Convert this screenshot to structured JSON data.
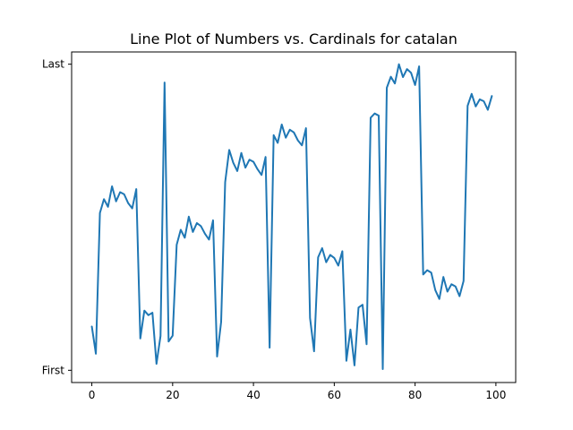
{
  "chart_data": {
    "type": "line",
    "title": "Line Plot of Numbers vs. Cardinals for catalan",
    "xlabel": "",
    "ylabel": "",
    "xlim": [
      -5,
      104.9
    ],
    "ylim": [
      -0.04,
      1.04
    ],
    "grid": false,
    "color": "#1f77b4",
    "x_ticks": [
      0,
      20,
      40,
      60,
      80,
      100
    ],
    "x_tick_labels": [
      "0",
      "20",
      "40",
      "60",
      "80",
      "100"
    ],
    "y_ticks": [
      0,
      1
    ],
    "y_tick_labels": [
      "First",
      "Last"
    ],
    "x": [
      0,
      1,
      2,
      3,
      4,
      5,
      6,
      7,
      8,
      9,
      10,
      11,
      12,
      13,
      14,
      15,
      16,
      17,
      18,
      19,
      20,
      21,
      22,
      23,
      24,
      25,
      26,
      27,
      28,
      29,
      30,
      31,
      32,
      33,
      34,
      35,
      36,
      37,
      38,
      39,
      40,
      41,
      42,
      43,
      44,
      45,
      46,
      47,
      48,
      49,
      50,
      51,
      52,
      53,
      54,
      55,
      56,
      57,
      58,
      59,
      60,
      61,
      62,
      63,
      64,
      65,
      66,
      67,
      68,
      69,
      70,
      71,
      72,
      73,
      74,
      75,
      76,
      77,
      78,
      79,
      80,
      81,
      82,
      83,
      84,
      85,
      86,
      87,
      88,
      89,
      90,
      91,
      92,
      93,
      94,
      95,
      96,
      97,
      98,
      99
    ],
    "values": [
      0.143,
      0.054,
      0.514,
      0.559,
      0.534,
      0.601,
      0.552,
      0.582,
      0.575,
      0.546,
      0.529,
      0.592,
      0.104,
      0.195,
      0.18,
      0.188,
      0.021,
      0.112,
      0.94,
      0.094,
      0.113,
      0.41,
      0.459,
      0.433,
      0.502,
      0.452,
      0.481,
      0.471,
      0.446,
      0.427,
      0.49,
      0.045,
      0.158,
      0.615,
      0.72,
      0.678,
      0.651,
      0.71,
      0.662,
      0.688,
      0.681,
      0.657,
      0.638,
      0.697,
      0.074,
      0.768,
      0.743,
      0.803,
      0.76,
      0.786,
      0.777,
      0.751,
      0.735,
      0.791,
      0.171,
      0.062,
      0.369,
      0.399,
      0.353,
      0.377,
      0.367,
      0.342,
      0.389,
      0.031,
      0.133,
      0.016,
      0.205,
      0.214,
      0.085,
      0.825,
      0.839,
      0.832,
      0.004,
      0.923,
      0.959,
      0.937,
      1.0,
      0.958,
      0.984,
      0.972,
      0.932,
      0.993,
      0.313,
      0.327,
      0.319,
      0.262,
      0.233,
      0.305,
      0.257,
      0.281,
      0.274,
      0.242,
      0.292,
      0.864,
      0.903,
      0.862,
      0.885,
      0.879,
      0.851,
      0.896
    ]
  }
}
